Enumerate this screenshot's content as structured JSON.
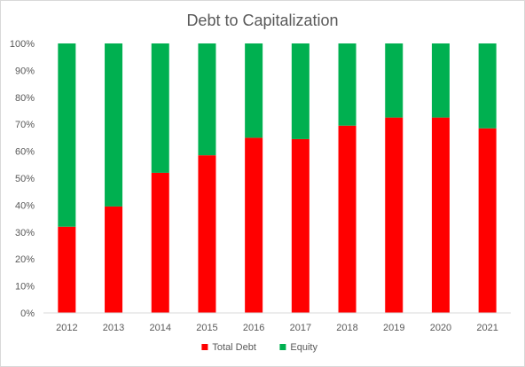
{
  "chart_data": {
    "type": "bar",
    "stacked": true,
    "percent": true,
    "title": "Debt to Capitalization",
    "xlabel": "",
    "ylabel": "",
    "ylim": [
      0,
      100
    ],
    "yticks": [
      "0%",
      "10%",
      "20%",
      "30%",
      "40%",
      "50%",
      "60%",
      "70%",
      "80%",
      "90%",
      "100%"
    ],
    "categories": [
      "2012",
      "2013",
      "2014",
      "2015",
      "2016",
      "2017",
      "2018",
      "2019",
      "2020",
      "2021"
    ],
    "series": [
      {
        "name": "Total Debt",
        "color": "#ff0000",
        "values": [
          32,
          39.5,
          52,
          58.5,
          65,
          64.5,
          69.5,
          72.5,
          72.5,
          68.5
        ]
      },
      {
        "name": "Equity",
        "color": "#00b050",
        "values": [
          68,
          60.5,
          48,
          41.5,
          35,
          35.5,
          30.5,
          27.5,
          27.5,
          31.5
        ]
      }
    ],
    "grid": false,
    "legend": "bottom"
  }
}
